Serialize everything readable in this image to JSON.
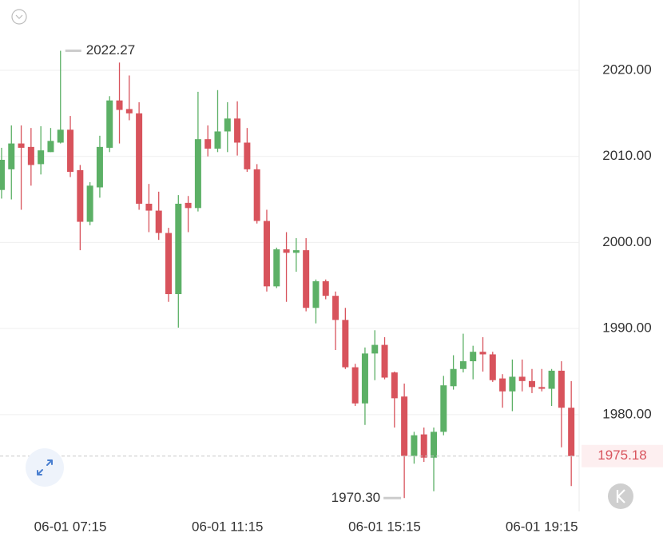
{
  "chart_data": {
    "type": "candlestick",
    "ohlc": {
      "open": [
        2006.1,
        2008.5,
        2011.5,
        2011.1,
        2009.1,
        2010.5,
        2011.6,
        2013.1,
        2008.4,
        2002.4,
        2006.4,
        2011.0,
        2016.5,
        2015.5,
        2015.0,
        2004.5,
        2003.7,
        2001.1,
        1994.0,
        2004.6,
        2004.0,
        2012.0,
        2010.9,
        2012.9,
        2014.4,
        2011.6,
        2008.5,
        2002.5,
        1994.9,
        1999.2,
        1998.8,
        1999.1,
        1992.4,
        1995.5,
        1993.8,
        1991.0,
        1985.5,
        1981.3,
        1987.1,
        1988.1,
        1984.9,
        1982.1,
        1975.2,
        1977.7,
        1975.0,
        1978.0,
        1983.3,
        1985.3,
        1986.2,
        1987.3,
        1987.0,
        1984.2,
        1982.7,
        1984.4,
        1983.9,
        1983.2,
        1983.0,
        1985.1,
        1980.8
      ],
      "high": [
        2011.0,
        2013.6,
        2013.6,
        2013.3,
        2013.5,
        2013.3,
        2022.27,
        2014.7,
        2009.0,
        2007.0,
        2012.4,
        2017.0,
        2020.9,
        2019.4,
        2016.3,
        2006.8,
        2005.9,
        2001.7,
        2005.5,
        2005.4,
        2017.5,
        2013.6,
        2017.7,
        2016.3,
        2016.4,
        2013.3,
        2009.1,
        2003.8,
        1999.4,
        2001.2,
        2000.5,
        2000.5,
        1995.7,
        1995.7,
        1994.3,
        1992.4,
        1985.9,
        1987.8,
        1989.8,
        1989.0,
        1985.0,
        1983.6,
        1978.0,
        1978.5,
        1978.5,
        1984.5,
        1986.9,
        1989.4,
        1988.0,
        1989.0,
        1987.3,
        1984.7,
        1986.4,
        1986.4,
        1985.3,
        1985.3,
        1985.3,
        1986.2,
        1983.9
      ],
      "low": [
        2005.1,
        2005.0,
        2003.8,
        2006.6,
        2007.9,
        2010.5,
        2011.5,
        2007.6,
        1999.1,
        2002.0,
        2005.2,
        2010.5,
        2011.5,
        2014.2,
        2003.8,
        2001.2,
        2000.3,
        1993.1,
        1990.1,
        2001.2,
        2003.6,
        2010.0,
        2010.5,
        2010.5,
        2010.1,
        2008.2,
        2002.2,
        1994.3,
        1994.7,
        1993.1,
        1996.6,
        1992.0,
        1990.6,
        1993.4,
        1987.5,
        1985.3,
        1981.0,
        1978.8,
        1984.0,
        1984.1,
        1978.5,
        1970.3,
        1974.3,
        1974.5,
        1971.1,
        1977.6,
        1982.9,
        1984.9,
        1984.1,
        1985.0,
        1983.8,
        1980.8,
        1980.4,
        1982.7,
        1982.5,
        1982.7,
        1981.0,
        1976.2,
        1971.7
      ],
      "close": [
        2009.6,
        2011.5,
        2011.0,
        2009.0,
        2010.7,
        2011.8,
        2013.1,
        2008.2,
        2002.4,
        2006.6,
        2011.1,
        2016.5,
        2015.4,
        2015.0,
        2004.5,
        2003.7,
        2001.1,
        1994.0,
        2004.5,
        2004.0,
        2012.0,
        2010.9,
        2012.9,
        2014.4,
        2011.6,
        2008.5,
        2002.5,
        1994.9,
        1999.2,
        1998.8,
        1999.1,
        1992.4,
        1995.5,
        1993.8,
        1991.0,
        1985.5,
        1981.3,
        1987.1,
        1988.1,
        1984.3,
        1981.9,
        1975.2,
        1977.6,
        1975.0,
        1978.0,
        1983.4,
        1985.3,
        1986.2,
        1987.3,
        1987.0,
        1984.0,
        1982.7,
        1984.4,
        1983.9,
        1983.2,
        1983.0,
        1985.1,
        1980.8,
        1975.18
      ]
    },
    "up_color": "#5cb066",
    "down_color": "#d8535c",
    "xlim": [
      -0.16,
      58.8
    ],
    "xticks": [
      {
        "value": 7,
        "label": "06-01 07:15"
      },
      {
        "value": 23,
        "label": "06-01 11:15"
      },
      {
        "value": 39,
        "label": "06-01 15:15"
      },
      {
        "value": 55,
        "label": "06-01 19:15"
      }
    ],
    "ylim": [
      1968.75,
      2028.17
    ],
    "yticks": [
      {
        "value": 1980,
        "label": "1980.00"
      },
      {
        "value": 1990,
        "label": "1990.00"
      },
      {
        "value": 2000,
        "label": "2000.00"
      },
      {
        "value": 2010,
        "label": "2010.00"
      },
      {
        "value": 2020,
        "label": "2020.00"
      }
    ],
    "grid": true,
    "high_label": "2022.27",
    "low_label": "1970.30",
    "last_label": "1975.18"
  }
}
